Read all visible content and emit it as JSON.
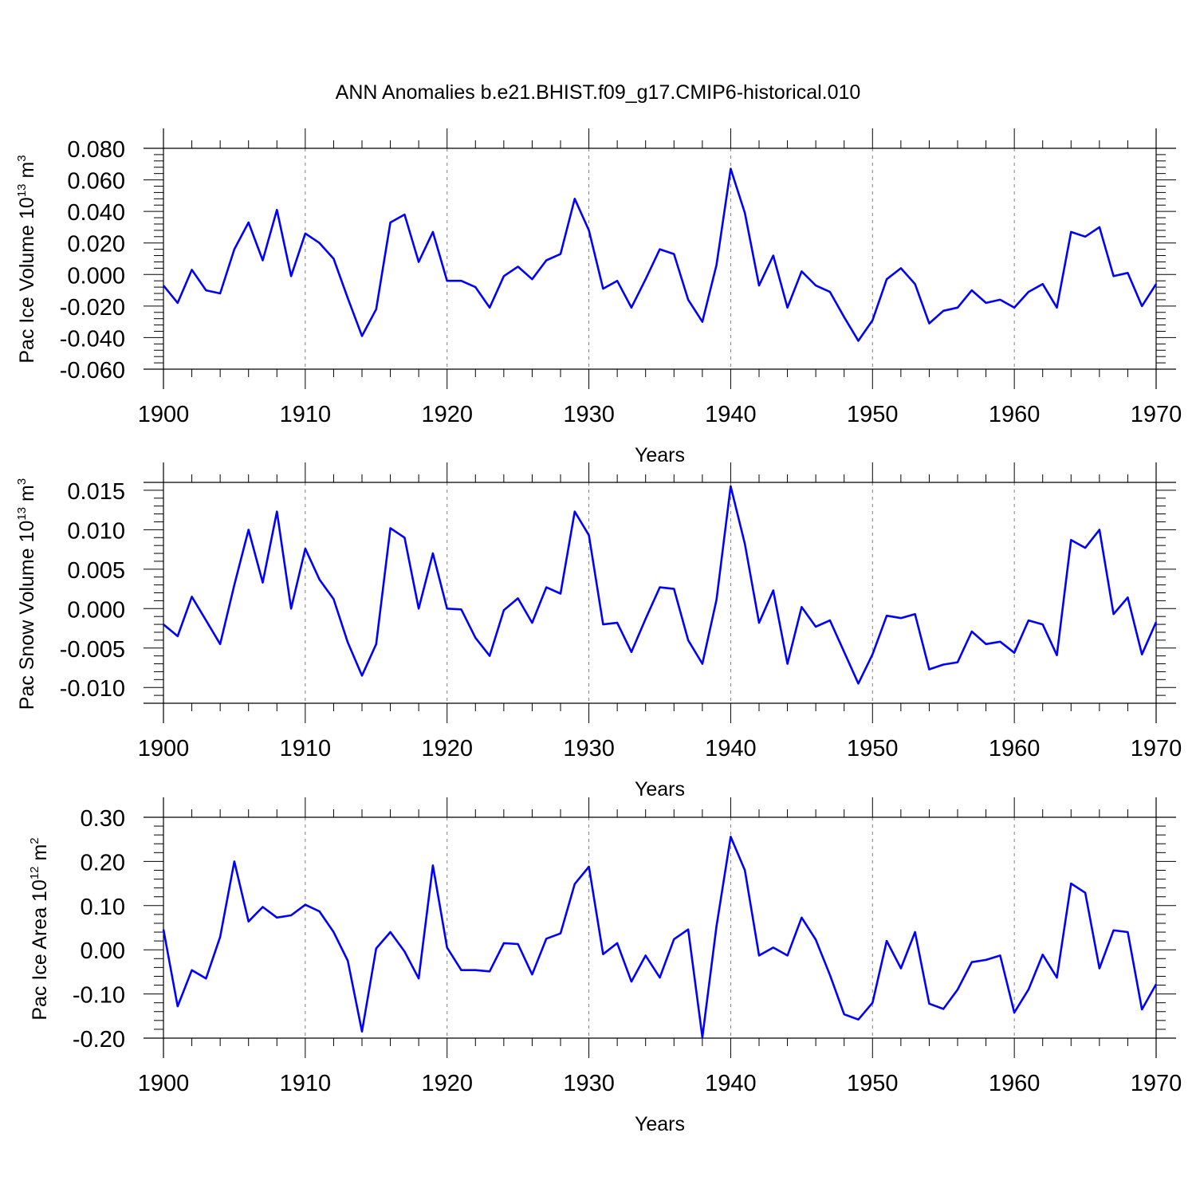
{
  "figure": {
    "title": "ANN Anomalies b.e21.BHIST.f09_g17.CMIP6-historical.010",
    "line_color": "#0000ff",
    "grid_color": "#808080",
    "axis_color": "#000000"
  },
  "chart_data": [
    {
      "type": "line",
      "name": "ice-volume",
      "ylabel_main": "Pac Ice Volume 10",
      "ylabel_exp": "13",
      "ylabel_unit": " m",
      "ylabel_unit_exp": "3",
      "xlabel": "Years",
      "xlim": [
        1900,
        1970
      ],
      "ylim": [
        -0.06,
        0.08
      ],
      "xticks": [
        1900,
        1910,
        1920,
        1930,
        1940,
        1950,
        1960,
        1970
      ],
      "yticks": [
        0.08,
        0.06,
        0.04,
        0.02,
        0.0,
        -0.02,
        -0.04,
        -0.06
      ],
      "ytick_labels": [
        "0.080",
        "0.060",
        "0.040",
        "0.020",
        "0.000",
        "-0.020",
        "-0.040",
        "-0.060"
      ],
      "grid_x": [
        1910,
        1920,
        1930,
        1940,
        1950,
        1960
      ],
      "x_start": 1900,
      "values": [
        -0.007,
        -0.018,
        0.003,
        -0.01,
        -0.012,
        0.016,
        0.033,
        0.009,
        0.041,
        -0.001,
        0.026,
        0.02,
        0.01,
        -0.015,
        -0.039,
        -0.022,
        0.033,
        0.038,
        0.008,
        0.027,
        -0.004,
        -0.004,
        -0.008,
        -0.021,
        -0.001,
        0.005,
        -0.003,
        0.009,
        0.013,
        0.048,
        0.028,
        -0.009,
        -0.004,
        -0.021,
        -0.003,
        0.016,
        0.013,
        -0.016,
        -0.03,
        0.006,
        0.067,
        0.039,
        -0.007,
        0.012,
        -0.021,
        0.002,
        -0.007,
        -0.011,
        -0.027,
        -0.042,
        -0.029,
        -0.003,
        0.004,
        -0.006,
        -0.031,
        -0.023,
        -0.021,
        -0.01,
        -0.018,
        -0.016,
        -0.021,
        -0.011,
        -0.006,
        -0.021,
        0.027,
        0.024,
        0.03,
        -0.001,
        0.001,
        -0.02,
        -0.006
      ]
    },
    {
      "type": "line",
      "name": "snow-volume",
      "ylabel_main": "Pac Snow Volume 10",
      "ylabel_exp": "13",
      "ylabel_unit": " m",
      "ylabel_unit_exp": "3",
      "xlabel": "Years",
      "xlim": [
        1900,
        1970
      ],
      "ylim": [
        -0.012,
        0.016
      ],
      "xticks": [
        1900,
        1910,
        1920,
        1930,
        1940,
        1950,
        1960,
        1970
      ],
      "yticks": [
        0.015,
        0.01,
        0.005,
        0.0,
        -0.005,
        -0.01
      ],
      "ytick_labels": [
        "0.015",
        "0.010",
        "0.005",
        "0.000",
        "-0.005",
        "-0.010"
      ],
      "grid_x": [
        1910,
        1920,
        1930,
        1940,
        1950,
        1960
      ],
      "x_start": 1900,
      "values": [
        -0.002,
        -0.0035,
        0.0015,
        -0.0015,
        -0.0045,
        0.003,
        0.01,
        0.0033,
        0.0123,
        0.0,
        0.0076,
        0.0037,
        0.0012,
        -0.0043,
        -0.0085,
        -0.0045,
        0.0102,
        0.009,
        0.0,
        0.007,
        0.0,
        -0.0001,
        -0.0037,
        -0.006,
        -0.0002,
        0.0013,
        -0.0018,
        0.0027,
        0.0019,
        0.0123,
        0.0093,
        -0.002,
        -0.0018,
        -0.0055,
        -0.0013,
        0.0027,
        0.0025,
        -0.004,
        -0.007,
        0.0011,
        0.0155,
        0.0082,
        -0.0018,
        0.0023,
        -0.007,
        0.0002,
        -0.0023,
        -0.0015,
        -0.0055,
        -0.0095,
        -0.0058,
        -0.0009,
        -0.0012,
        -0.0007,
        -0.0077,
        -0.0071,
        -0.0068,
        -0.0029,
        -0.0045,
        -0.0042,
        -0.0056,
        -0.0015,
        -0.002,
        -0.0059,
        0.0087,
        0.0077,
        0.01,
        -0.0007,
        0.0014,
        -0.0058,
        -0.0017
      ]
    },
    {
      "type": "line",
      "name": "ice-area",
      "ylabel_main": "Pac Ice Area 10",
      "ylabel_exp": "12",
      "ylabel_unit": " m",
      "ylabel_unit_exp": "2",
      "xlabel": "Years",
      "xlim": [
        1900,
        1970
      ],
      "ylim": [
        -0.2,
        0.3
      ],
      "xticks": [
        1900,
        1910,
        1920,
        1930,
        1940,
        1950,
        1960,
        1970
      ],
      "yticks": [
        0.3,
        0.2,
        0.1,
        0.0,
        -0.1,
        -0.2
      ],
      "ytick_labels": [
        "0.30",
        "0.20",
        "0.10",
        "0.00",
        "-0.10",
        "-0.20"
      ],
      "grid_x": [
        1910,
        1920,
        1930,
        1940,
        1950,
        1960
      ],
      "x_start": 1900,
      "values": [
        0.046,
        -0.128,
        -0.046,
        -0.065,
        0.029,
        0.2,
        0.064,
        0.097,
        0.073,
        0.078,
        0.102,
        0.087,
        0.04,
        -0.025,
        -0.185,
        0.003,
        0.04,
        -0.004,
        -0.065,
        0.191,
        0.005,
        -0.046,
        -0.046,
        -0.049,
        0.015,
        0.013,
        -0.056,
        0.025,
        0.037,
        0.149,
        0.188,
        -0.01,
        0.015,
        -0.072,
        -0.013,
        -0.063,
        0.024,
        0.046,
        -0.198,
        0.053,
        0.256,
        0.18,
        -0.013,
        0.005,
        -0.013,
        0.073,
        0.023,
        -0.057,
        -0.146,
        -0.158,
        -0.12,
        0.02,
        -0.042,
        0.04,
        -0.122,
        -0.134,
        -0.09,
        -0.028,
        -0.023,
        -0.013,
        -0.142,
        -0.09,
        -0.011,
        -0.063,
        0.15,
        0.129,
        -0.042,
        0.044,
        0.04,
        -0.135,
        -0.078
      ]
    }
  ]
}
